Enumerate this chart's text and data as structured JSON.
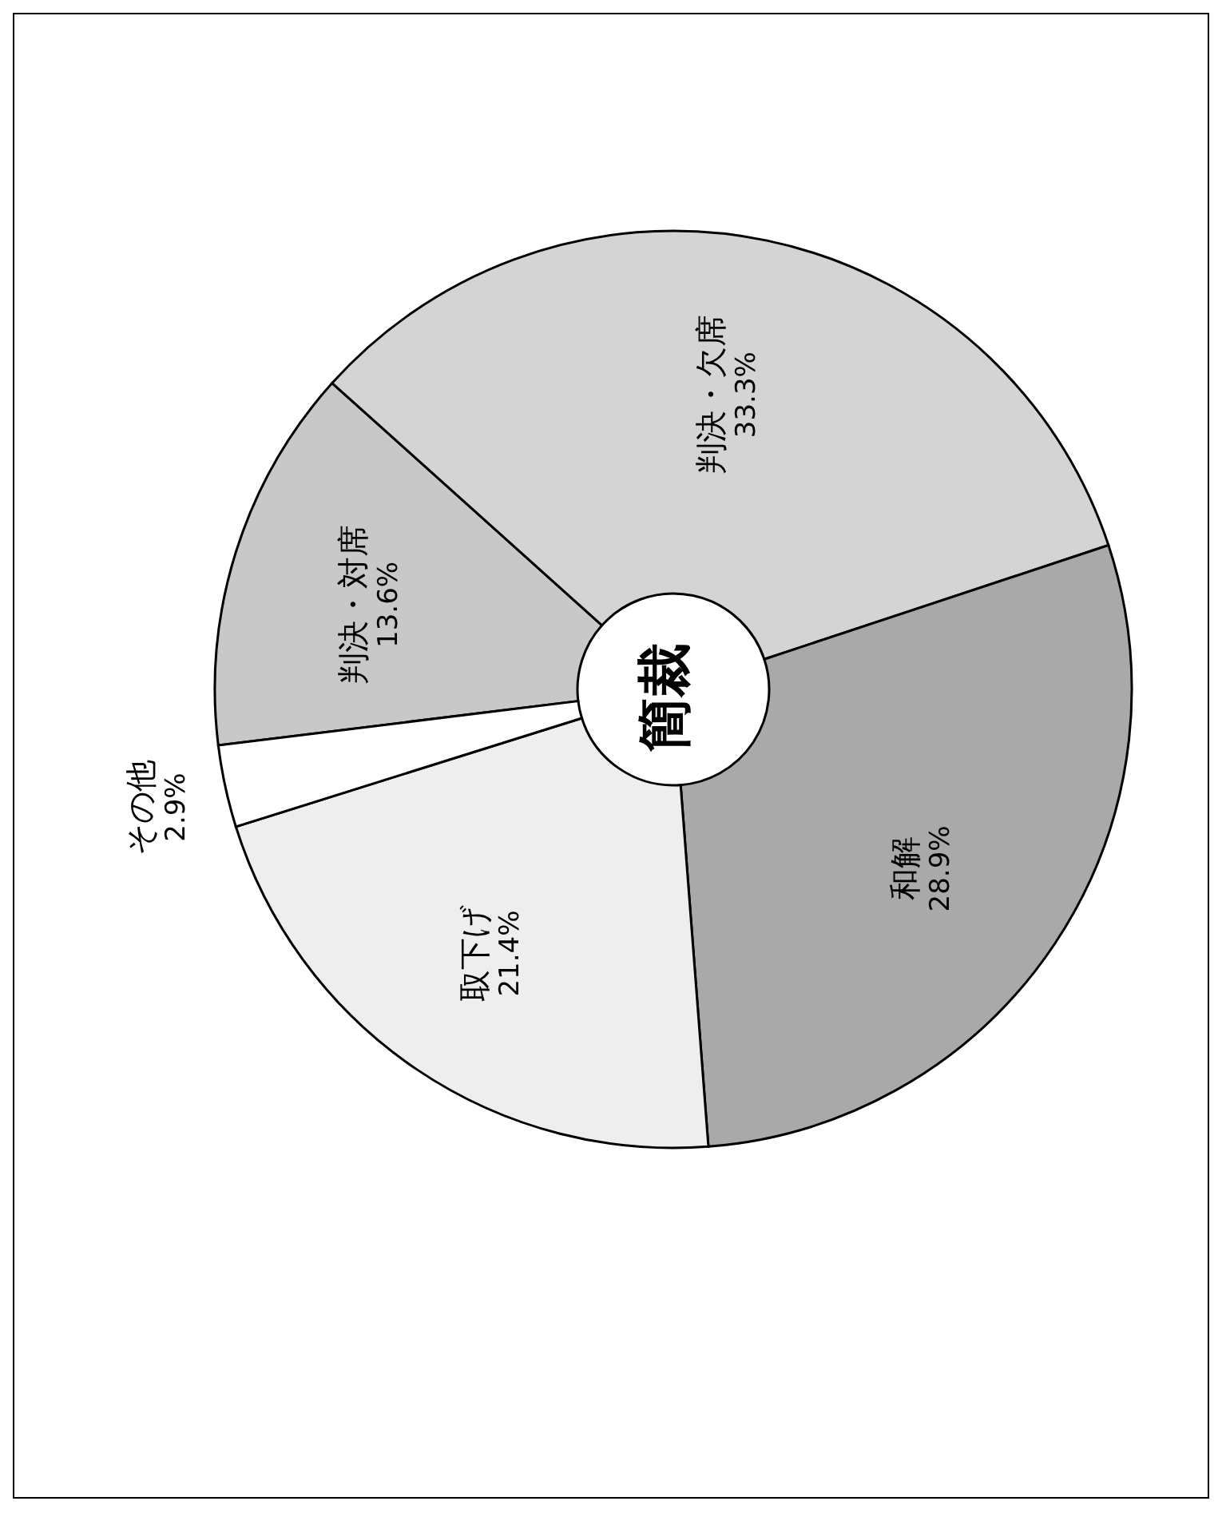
{
  "chart_data": {
    "type": "donut",
    "categories": [
      "判決・対席",
      "判決・欠席",
      "和解",
      "取下げ",
      "その他"
    ],
    "values": [
      13.6,
      33.3,
      28.9,
      21.4,
      2.9
    ],
    "colors": [
      "#c8c8c8",
      "#d4d4d4",
      "#a9a9a9",
      "#eeeeee",
      "#ffffff"
    ],
    "value_labels": [
      "13.6%",
      "33.3%",
      "28.9%",
      "21.4%",
      "2.9%"
    ],
    "annotations": [
      "簡裁"
    ]
  }
}
